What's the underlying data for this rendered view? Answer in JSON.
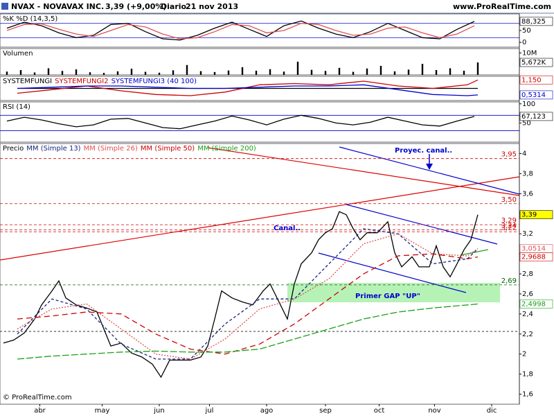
{
  "header": {
    "title": "NVAX - NOVAVAX INC.",
    "quote": "3,39 (+9,00%)",
    "period": "Diario",
    "date": "21 nov 2013",
    "site": "www.ProRealTime.com"
  },
  "footer": "© ProRealTime.com",
  "chart_data": [
    {
      "type": "line",
      "title": "%K %D (14,3,5)",
      "xlim": [
        0,
        150
      ],
      "ylim": [
        -20,
        120
      ],
      "yticks": [
        0,
        50
      ],
      "levels": [
        80,
        20
      ],
      "level_color": "#0000cc",
      "x": [
        2,
        7,
        12,
        17,
        22,
        27,
        32,
        37,
        42,
        47,
        52,
        57,
        62,
        67,
        72,
        77,
        82,
        87,
        92,
        97,
        102,
        107,
        112,
        117,
        122,
        127,
        132,
        137
      ],
      "series": [
        {
          "color": "#000000",
          "values": [
            60,
            85,
            70,
            40,
            20,
            30,
            75,
            80,
            45,
            15,
            10,
            30,
            60,
            85,
            55,
            25,
            70,
            90,
            60,
            35,
            20,
            45,
            80,
            50,
            20,
            15,
            55,
            88.325
          ],
          "value_labels": [
            null,
            null,
            null,
            null,
            null,
            null,
            null,
            null,
            null,
            null,
            null,
            null,
            null,
            null,
            null,
            null,
            null,
            null,
            null,
            null,
            null,
            null,
            null,
            null,
            null,
            null,
            null,
            "88,325"
          ]
        },
        {
          "color": "#e05050",
          "values": [
            50,
            75,
            78,
            55,
            35,
            25,
            50,
            75,
            65,
            35,
            15,
            20,
            45,
            75,
            70,
            40,
            50,
            80,
            75,
            50,
            30,
            35,
            60,
            65,
            40,
            20,
            35,
            70
          ]
        }
      ]
    },
    {
      "type": "bar",
      "title": "Volumen",
      "xlim": [
        0,
        150
      ],
      "ylim": [
        0,
        12000000
      ],
      "yticks": [
        {
          "value": 10000000,
          "label": "10M"
        }
      ],
      "x": [
        2,
        6,
        10,
        14,
        18,
        22,
        26,
        30,
        34,
        38,
        42,
        46,
        50,
        54,
        58,
        62,
        66,
        70,
        74,
        78,
        82,
        86,
        90,
        94,
        98,
        102,
        106,
        110,
        114,
        118,
        122,
        126,
        130,
        134,
        138
      ],
      "series": [
        {
          "color": "#000000",
          "values": [
            1500000,
            2200000,
            1100000,
            3000000,
            1800000,
            2500000,
            1200000,
            900000,
            1600000,
            2800000,
            1400000,
            1000000,
            2100000,
            4500000,
            1700000,
            1300000,
            2000000,
            3500000,
            1900000,
            2600000,
            1500000,
            6000000,
            2300000,
            1800000,
            3200000,
            1400000,
            2900000,
            4100000,
            1600000,
            2400000,
            5000000,
            2200000,
            3000000,
            1900000,
            5672000
          ],
          "value_labels": [
            null,
            null,
            null,
            null,
            null,
            null,
            null,
            null,
            null,
            null,
            null,
            null,
            null,
            null,
            null,
            null,
            null,
            null,
            null,
            null,
            null,
            null,
            null,
            null,
            null,
            null,
            null,
            null,
            null,
            null,
            null,
            null,
            null,
            null,
            "5,672K"
          ]
        }
      ]
    },
    {
      "type": "line",
      "xlim": [
        0,
        150
      ],
      "ylim": [
        0.3,
        1.3
      ],
      "x": [
        5,
        15,
        25,
        35,
        45,
        55,
        65,
        75,
        85,
        95,
        105,
        115,
        125,
        135,
        138
      ],
      "series": [
        {
          "name": "SYSTEMFUNGI",
          "color": "#000000",
          "values": [
            0.8,
            0.8,
            0.8,
            0.8,
            0.8,
            0.8,
            0.8,
            0.8,
            0.8,
            0.8,
            0.8,
            0.8,
            0.8,
            0.8,
            0.8
          ]
        },
        {
          "name": "SYSTEMFUNGI2",
          "color": "#cc0000",
          "values": [
            0.6,
            0.75,
            0.9,
            0.7,
            0.55,
            0.5,
            0.65,
            0.95,
            1.0,
            0.95,
            1.1,
            0.9,
            0.8,
            0.95,
            1.15
          ],
          "value_labels": [
            null,
            null,
            null,
            null,
            null,
            null,
            null,
            null,
            null,
            null,
            null,
            null,
            null,
            null,
            "1,150"
          ]
        },
        {
          "name": "SYSTEMFUNGI3 (40 100)",
          "color": "#0000cc",
          "values": [
            0.8,
            0.85,
            0.9,
            0.9,
            0.85,
            0.8,
            0.8,
            0.85,
            0.9,
            0.9,
            0.95,
            0.75,
            0.55,
            0.5,
            0.5314
          ],
          "value_labels": [
            null,
            null,
            null,
            null,
            null,
            null,
            null,
            null,
            null,
            null,
            null,
            null,
            null,
            null,
            "0,5314"
          ]
        }
      ]
    },
    {
      "type": "line",
      "title": "RSI (14)",
      "xlim": [
        0,
        150
      ],
      "ylim": [
        0,
        105
      ],
      "yticks": [
        50,
        100
      ],
      "levels": [
        70,
        30
      ],
      "level_color": "#0000cc",
      "x": [
        2,
        7,
        12,
        17,
        22,
        27,
        32,
        37,
        42,
        47,
        52,
        57,
        62,
        67,
        72,
        77,
        82,
        87,
        92,
        97,
        102,
        107,
        112,
        117,
        122,
        127,
        132,
        137
      ],
      "series": [
        {
          "color": "#000000",
          "values": [
            55,
            65,
            58,
            48,
            40,
            45,
            60,
            62,
            50,
            38,
            35,
            45,
            55,
            68,
            58,
            45,
            60,
            70,
            62,
            50,
            45,
            52,
            65,
            55,
            45,
            42,
            55,
            67.123
          ],
          "value_labels": [
            null,
            null,
            null,
            null,
            null,
            null,
            null,
            null,
            null,
            null,
            null,
            null,
            null,
            null,
            null,
            null,
            null,
            null,
            null,
            null,
            null,
            null,
            null,
            null,
            null,
            null,
            null,
            "67,123"
          ]
        }
      ]
    },
    {
      "type": "line",
      "xlim": [
        0,
        150
      ],
      "ylim": [
        1.5,
        4.1
      ],
      "yticks": [
        {
          "value": 1.6,
          "label": "1,6"
        },
        {
          "value": 1.8,
          "label": "1,8"
        },
        2,
        {
          "value": 2.2,
          "label": "2,2"
        },
        {
          "value": 2.4,
          "label": "2,4"
        },
        {
          "value": 2.6,
          "label": "2,6"
        },
        {
          "value": 2.8,
          "label": "2,8"
        },
        3,
        {
          "value": 3.2,
          "label": "3,2"
        },
        {
          "value": 3.4,
          "label": "3,4"
        },
        {
          "value": 3.6,
          "label": "3,6"
        },
        {
          "value": 3.8,
          "label": "3,8"
        },
        4
      ],
      "xticks": [
        {
          "value": 11.5,
          "label": "abr"
        },
        {
          "value": 29.5,
          "label": "may"
        },
        {
          "value": 46,
          "label": "jun"
        },
        {
          "value": 60.5,
          "label": "jul"
        },
        {
          "value": 77,
          "label": "ago"
        },
        {
          "value": 94,
          "label": "sep"
        },
        {
          "value": 109.5,
          "label": "oct"
        },
        {
          "value": 125.5,
          "label": "nov"
        },
        {
          "value": 142,
          "label": "dic"
        }
      ],
      "levels": [
        {
          "value": 3.95,
          "label": "3,95",
          "color": "#cc0000"
        },
        {
          "value": 3.5,
          "label": "3,50",
          "color": "#cc0000"
        },
        {
          "value": 3.29,
          "label": "3,29",
          "color": "#cc0000"
        },
        {
          "value": 3.24,
          "label": "3,24",
          "color": "#cc0000"
        },
        {
          "value": 3.22,
          "label": "3,22",
          "color": "#cc0000"
        },
        {
          "value": 2.69,
          "label": "2,69",
          "color": "#006600"
        }
      ],
      "level_dash": true,
      "annotations": [
        "Proyec. canal..",
        "Canal..",
        "Primer GAP \"UP\""
      ],
      "series": [
        {
          "name": "Precio",
          "color": "#000000",
          "label_fill": "#ffff00",
          "x": [
            1,
            4,
            7,
            10,
            12,
            15,
            17,
            19,
            22,
            25,
            28,
            30,
            32,
            35,
            38,
            41,
            44,
            46.5,
            49,
            52,
            55,
            58,
            60,
            62,
            64,
            67,
            70,
            73,
            76,
            78,
            81,
            83,
            85,
            87,
            90,
            92,
            94,
            96,
            98,
            100,
            102,
            104,
            106,
            109,
            112,
            114,
            116,
            119,
            121,
            124,
            126,
            128,
            130,
            132,
            134,
            136,
            138
          ],
          "values": [
            2.11,
            2.14,
            2.21,
            2.35,
            2.49,
            2.63,
            2.73,
            2.56,
            2.49,
            2.46,
            2.42,
            2.25,
            2.08,
            2.11,
            2.01,
            1.97,
            1.9,
            1.77,
            1.94,
            1.94,
            1.94,
            1.97,
            2.08,
            2.35,
            2.63,
            2.56,
            2.52,
            2.49,
            2.63,
            2.7,
            2.49,
            2.35,
            2.7,
            2.9,
            3.01,
            3.14,
            3.21,
            3.25,
            3.42,
            3.39,
            3.25,
            3.14,
            3.21,
            3.21,
            3.32,
            3.01,
            2.87,
            2.97,
            2.87,
            2.87,
            3.08,
            2.87,
            2.77,
            2.9,
            3.04,
            3.14,
            3.39
          ],
          "value_labels": [
            null,
            null,
            null,
            null,
            null,
            null,
            null,
            null,
            null,
            null,
            null,
            null,
            null,
            null,
            null,
            null,
            null,
            null,
            null,
            null,
            null,
            null,
            null,
            null,
            null,
            null,
            null,
            null,
            null,
            null,
            null,
            null,
            null,
            null,
            null,
            null,
            null,
            null,
            null,
            null,
            null,
            null,
            null,
            null,
            null,
            null,
            null,
            null,
            null,
            null,
            null,
            null,
            null,
            null,
            null,
            null,
            "3,39"
          ]
        },
        {
          "name": "MM (Simple 13)",
          "color": "#1a237e",
          "dash": "4 3",
          "x": [
            5,
            15,
            25,
            35,
            45,
            55,
            65,
            75,
            85,
            95,
            105,
            115,
            125,
            135,
            138
          ],
          "values": [
            2.2,
            2.55,
            2.45,
            2.1,
            1.95,
            1.95,
            2.3,
            2.55,
            2.55,
            2.9,
            3.25,
            3.2,
            2.9,
            2.95,
            3.05
          ]
        },
        {
          "name": "MM (Simple 26)",
          "color": "#e05050",
          "dash": "2 2",
          "x": [
            5,
            15,
            25,
            35,
            45,
            55,
            65,
            75,
            85,
            95,
            105,
            115,
            125,
            135,
            138
          ],
          "values": [
            2.25,
            2.45,
            2.5,
            2.25,
            2.0,
            1.95,
            2.15,
            2.45,
            2.55,
            2.75,
            3.1,
            3.2,
            3.0,
            2.98,
            3.0514
          ],
          "value_labels": [
            null,
            null,
            null,
            null,
            null,
            null,
            null,
            null,
            null,
            null,
            null,
            null,
            null,
            null,
            "3,0514"
          ]
        },
        {
          "name": "MM (Simple 50)",
          "color": "#cc0000",
          "dash": "8 5",
          "x": [
            5,
            15,
            25,
            35,
            45,
            55,
            65,
            75,
            85,
            95,
            105,
            115,
            125,
            135,
            138
          ],
          "values": [
            2.35,
            2.38,
            2.42,
            2.4,
            2.2,
            2.05,
            2.0,
            2.1,
            2.3,
            2.55,
            2.8,
            2.98,
            3.0,
            2.95,
            2.9688
          ],
          "value_labels": [
            null,
            null,
            null,
            null,
            null,
            null,
            null,
            null,
            null,
            null,
            null,
            null,
            null,
            null,
            "2,9688"
          ]
        },
        {
          "name": "MM (Simple 200)",
          "color": "#1aa01a",
          "dash": "10 3",
          "x": [
            5,
            15,
            25,
            35,
            45,
            55,
            65,
            75,
            85,
            95,
            105,
            115,
            125,
            135,
            138
          ],
          "values": [
            1.95,
            1.98,
            2.0,
            2.02,
            2.03,
            2.02,
            2.02,
            2.05,
            2.15,
            2.25,
            2.35,
            2.42,
            2.46,
            2.49,
            2.4998
          ],
          "value_labels": [
            null,
            null,
            null,
            null,
            null,
            null,
            null,
            null,
            null,
            null,
            null,
            null,
            null,
            null,
            "2,4998"
          ]
        }
      ]
    }
  ]
}
